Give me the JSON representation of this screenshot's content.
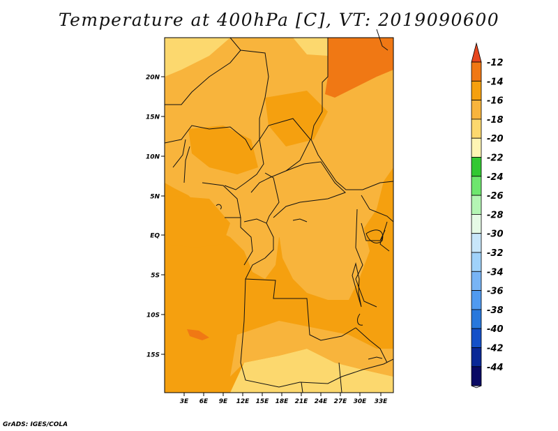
{
  "title": "Temperature at 400hPa [C], VT: 2019090600",
  "credit": "GrADS: IGES/COLA",
  "map": {
    "lat_labels": [
      "20N",
      "15N",
      "10N",
      "5N",
      "EQ",
      "5S",
      "10S",
      "15S"
    ],
    "lon_labels": [
      "3E",
      "6E",
      "9E",
      "12E",
      "15E",
      "18E",
      "21E",
      "24E",
      "27E",
      "30E",
      "33E"
    ]
  },
  "colorbar": {
    "levels": [
      "-12",
      "-14",
      "-16",
      "-18",
      "-20",
      "-22",
      "-24",
      "-26",
      "-28",
      "-30",
      "-32",
      "-34",
      "-36",
      "-38",
      "-40",
      "-42",
      "-44"
    ],
    "colors": [
      "#e6461e",
      "#f07814",
      "#f5a00f",
      "#f8b43c",
      "#fcd86e",
      "#fff5b4",
      "#32c832",
      "#6ee66e",
      "#b4f5b4",
      "#e6fae6",
      "#c8e6fa",
      "#a0d2fa",
      "#78b4f5",
      "#509af0",
      "#2878dc",
      "#1450c8",
      "#0a2896",
      "#0a0a64",
      "#e1e1f5"
    ]
  }
}
